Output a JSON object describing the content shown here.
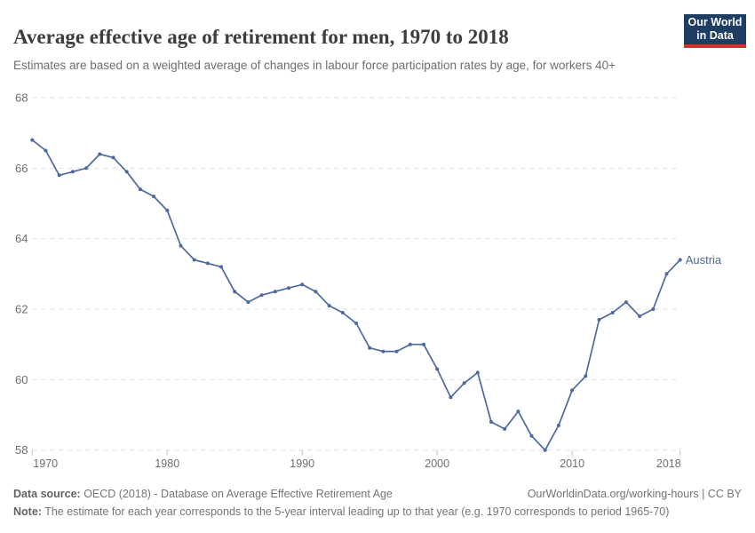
{
  "header": {
    "title": "Average effective age of retirement for men, 1970 to 2018",
    "subtitle": "Estimates are based on a weighted average of changes in labour force participation rates by age, for workers 40+",
    "logo_line1": "Our World",
    "logo_line2": "in Data"
  },
  "chart_data": {
    "type": "line",
    "title": "Average effective age of retirement for men, 1970 to 2018",
    "xlabel": "",
    "ylabel": "",
    "xlim": [
      1970,
      2018
    ],
    "ylim": [
      58,
      68
    ],
    "x_ticks": [
      1970,
      1980,
      1990,
      2000,
      2010,
      2018
    ],
    "y_ticks": [
      68,
      66,
      64,
      62,
      60,
      58
    ],
    "grid": "horizontal-dashed",
    "legend": "end-of-line-label",
    "x": [
      1970,
      1971,
      1972,
      1973,
      1974,
      1975,
      1976,
      1977,
      1978,
      1979,
      1980,
      1981,
      1982,
      1983,
      1984,
      1985,
      1986,
      1987,
      1988,
      1989,
      1990,
      1991,
      1992,
      1993,
      1994,
      1995,
      1996,
      1997,
      1998,
      1999,
      2000,
      2001,
      2002,
      2003,
      2004,
      2005,
      2006,
      2007,
      2008,
      2009,
      2010,
      2011,
      2012,
      2013,
      2014,
      2015,
      2016,
      2017,
      2018
    ],
    "series": [
      {
        "name": "Austria",
        "color": "#4c6a9c",
        "values": [
          66.8,
          66.5,
          65.8,
          65.9,
          66.0,
          66.4,
          66.3,
          65.9,
          65.4,
          65.2,
          64.8,
          63.8,
          63.4,
          63.3,
          63.2,
          62.5,
          62.2,
          62.4,
          62.5,
          62.6,
          62.7,
          62.5,
          62.1,
          61.9,
          61.6,
          60.9,
          60.8,
          60.8,
          61.0,
          61.0,
          60.3,
          59.5,
          59.9,
          60.2,
          58.8,
          58.6,
          59.1,
          58.4,
          58.0,
          58.7,
          59.7,
          60.1,
          61.7,
          61.9,
          62.2,
          61.8,
          62.0,
          63.0,
          63.4
        ]
      }
    ]
  },
  "footer": {
    "source_label": "Data source:",
    "source_text": " OECD (2018) - Database on Average Effective Retirement Age",
    "url_text": "OurWorldinData.org/working-hours | CC BY",
    "note_label": "Note:",
    "note_text": " The estimate for each year corresponds to the 5-year interval leading up to that year (e.g. 1970 corresponds to period 1965-70)"
  },
  "colors": {
    "line": "#4c6a9c",
    "title": "#3d3d3d",
    "subtitle": "#6e6e6e",
    "axis_label": "#6e6e6e",
    "gridline": "#dedede",
    "tick": "#c0c0c0",
    "logo_bg": "#1d3d63",
    "logo_accent": "#d0342c",
    "footer_text": "#757575"
  }
}
